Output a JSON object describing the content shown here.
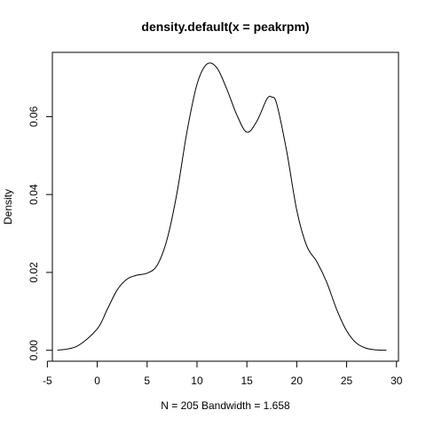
{
  "chart_data": {
    "type": "line",
    "title": "density.default(x = peakrpm)",
    "xlabel": "N = 205   Bandwidth = 1.658",
    "ylabel": "Density",
    "xlim": [
      -4.5,
      30.2
    ],
    "ylim": [
      -0.0028,
      0.0765
    ],
    "x_ticks": [
      -5,
      0,
      5,
      10,
      15,
      20,
      25,
      30
    ],
    "x_tick_labels": [
      "-5",
      "0",
      "5",
      "10",
      "15",
      "20",
      "25",
      "30"
    ],
    "y_ticks": [
      0.0,
      0.02,
      0.04,
      0.06
    ],
    "y_tick_labels": [
      "0.00",
      "0.02",
      "0.04",
      "0.06"
    ],
    "grid": false,
    "series": [
      {
        "x": [
          -4,
          -2,
          0,
          1,
          2,
          3,
          4,
          5,
          6,
          7,
          8,
          9,
          10,
          11,
          12,
          13,
          14,
          15,
          16,
          17,
          17.5,
          18,
          19,
          20,
          21,
          22,
          23,
          24,
          25,
          26,
          27,
          28,
          29
        ],
        "y": [
          0.0,
          0.0011,
          0.0055,
          0.0105,
          0.0155,
          0.0183,
          0.0193,
          0.0198,
          0.0218,
          0.0285,
          0.0405,
          0.0562,
          0.0683,
          0.0735,
          0.0725,
          0.067,
          0.0604,
          0.056,
          0.0588,
          0.0645,
          0.065,
          0.0632,
          0.051,
          0.036,
          0.0268,
          0.0228,
          0.0175,
          0.0105,
          0.005,
          0.0018,
          0.0005,
          0.0001,
          0.0
        ]
      }
    ]
  }
}
